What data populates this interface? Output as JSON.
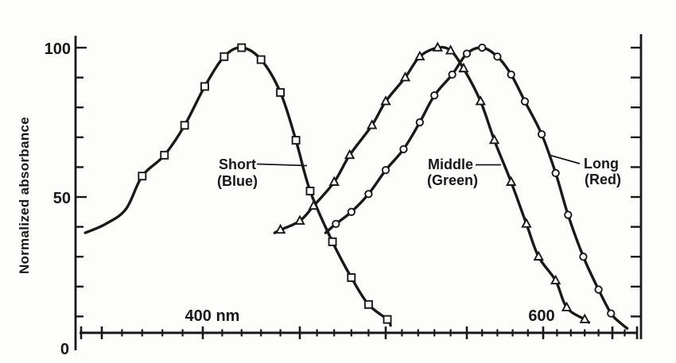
{
  "chart_data": {
    "type": "line",
    "title": "",
    "ylabel": "Normalized absorbance",
    "xlabel": "",
    "ylim": [
      0,
      100
    ],
    "grid": false,
    "legend_position": "inline-annotations",
    "y_ticks": [
      {
        "label": "100",
        "value": 100
      },
      {
        "label": "50",
        "value": 50
      },
      {
        "label": "0",
        "value": 0
      }
    ],
    "y_minor_step": 10,
    "x_axis": {
      "unit": "nm",
      "scale": "nonlinear-wavelength",
      "range_nm": [
        340,
        670
      ],
      "major_tick_step_nm": 50,
      "minor_tick_step_nm": 10,
      "major_ticks_nm": [
        350,
        400,
        450,
        500,
        550,
        600,
        650
      ],
      "labels": [
        {
          "label": "400 nm",
          "nm": 400
        },
        {
          "label": "600",
          "nm": 600
        }
      ]
    },
    "series": [
      {
        "name": "Short (Blue)",
        "marker": "square",
        "peak_nm": 420,
        "points_nm_absorbance": [
          [
            370,
            57
          ],
          [
            381,
            64
          ],
          [
            391,
            74
          ],
          [
            401,
            87
          ],
          [
            411,
            97
          ],
          [
            420,
            100
          ],
          [
            430,
            96
          ],
          [
            440,
            85
          ],
          [
            448,
            69
          ],
          [
            456,
            52
          ],
          [
            469,
            35
          ],
          [
            480,
            23
          ],
          [
            490,
            14
          ],
          [
            501,
            9
          ]
        ],
        "tail_pre": [
          [
            342,
            38
          ],
          [
            352,
            41
          ],
          [
            362,
            46
          ]
        ],
        "tail_post": [
          [
            503,
            7
          ]
        ]
      },
      {
        "name": "Middle (Green)",
        "marker": "triangle",
        "peak_nm": 532,
        "points_nm_absorbance": [
          [
            440,
            39
          ],
          [
            450,
            42
          ],
          [
            458,
            47
          ],
          [
            470,
            55
          ],
          [
            479,
            64
          ],
          [
            492,
            74
          ],
          [
            500,
            82
          ],
          [
            512,
            90
          ],
          [
            521,
            97
          ],
          [
            532,
            100
          ],
          [
            540,
            99
          ],
          [
            548,
            93
          ],
          [
            559,
            82
          ],
          [
            568,
            69
          ],
          [
            579,
            55
          ],
          [
            589,
            41
          ],
          [
            597,
            30
          ],
          [
            609,
            22
          ],
          [
            617,
            13
          ],
          [
            630,
            9
          ]
        ],
        "tail_pre": [
          [
            437,
            38
          ]
        ],
        "tail_post": [
          [
            633,
            8
          ]
        ]
      },
      {
        "name": "Long (Red)",
        "marker": "circle",
        "peak_nm": 560,
        "points_nm_absorbance": [
          [
            471,
            41
          ],
          [
            480,
            45
          ],
          [
            490,
            51
          ],
          [
            500,
            59
          ],
          [
            511,
            66
          ],
          [
            521,
            75
          ],
          [
            530,
            84
          ],
          [
            541,
            91
          ],
          [
            550,
            98
          ],
          [
            560,
            100
          ],
          [
            570,
            97
          ],
          [
            579,
            91
          ],
          [
            588,
            82
          ],
          [
            599,
            71
          ],
          [
            609,
            58
          ],
          [
            618,
            44
          ],
          [
            629,
            30
          ],
          [
            640,
            19
          ],
          [
            649,
            11
          ]
        ],
        "tail_pre": [
          [
            465,
            38
          ]
        ],
        "tail_post": [
          [
            656,
            8
          ],
          [
            662,
            6
          ]
        ]
      }
    ],
    "annotations": [
      {
        "line1": "Short",
        "line2": "(Blue)",
        "series": "Short (Blue)"
      },
      {
        "line1": "Middle",
        "line2": "(Green)",
        "series": "Middle (Green)"
      },
      {
        "line1": "Long",
        "line2": "(Red)",
        "series": "Long (Red)"
      }
    ],
    "ink_color": "#191919",
    "background_color": "#fdfdfb"
  }
}
